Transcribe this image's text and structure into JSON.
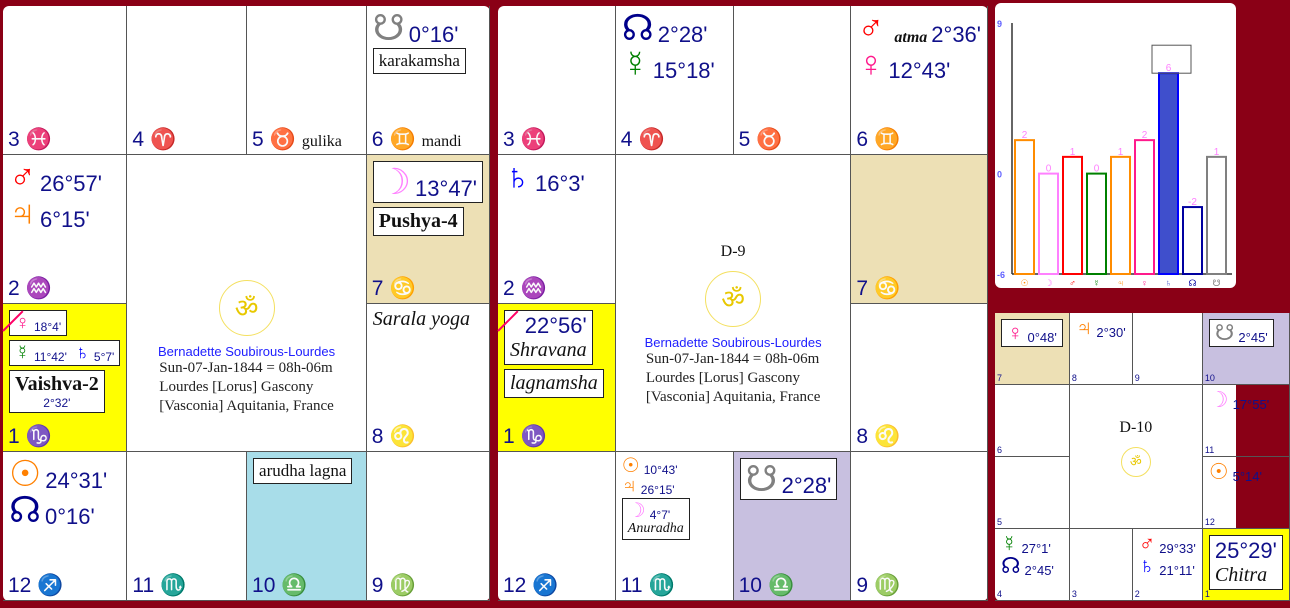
{
  "colors": {
    "background": "#8a0016",
    "yellow": "#ffff00",
    "tan": "#ede0b5",
    "lightblue": "#a8dde9",
    "lavender": "#c8c0e0",
    "degree": "#10108a"
  },
  "planets": {
    "sun": {
      "glyph": "☉",
      "color": "#ff8000"
    },
    "moon": {
      "glyph": "☽",
      "color": "#ff80ff"
    },
    "mars": {
      "glyph": "♂",
      "color": "#ff0000"
    },
    "mercury": {
      "glyph": "☿",
      "color": "#008000"
    },
    "jupiter": {
      "glyph": "♃",
      "color": "#ff8000"
    },
    "venus": {
      "glyph": "♀",
      "color": "#ff1a8c"
    },
    "saturn": {
      "glyph": "♄",
      "color": "#0000ff"
    },
    "rahu": {
      "glyph": "☊",
      "color": "#00008b"
    },
    "ketu": {
      "glyph": "☋",
      "color": "#808080"
    }
  },
  "signs": {
    "1": "♑",
    "2": "♒",
    "3": "♓",
    "4": "♈",
    "5": "♉",
    "6": "♊",
    "7": "♋",
    "8": "♌",
    "9": "♍",
    "10": "♎",
    "11": "♏",
    "12": "♐"
  },
  "sign_colors": {
    "1": "#0000ff",
    "2": "#0000ff",
    "3": "#ff8000",
    "4": "#ff0000",
    "5": "#ff1a8c",
    "6": "#008000",
    "7": "#ff80ff",
    "8": "#ff8000",
    "9": "#008000",
    "10": "#ff1a8c",
    "11": "#ff0000",
    "12": "#ff8000"
  },
  "birth": {
    "name": "Bernadette Soubirous-Lourdes",
    "line1": "Sun-07-Jan-1844 = 08h-06m",
    "line2": "Lourdes [Lorus]  Gascony",
    "line3": "[Vasconia] Aquitania, France",
    "om": "ॐ"
  },
  "charts": [
    {
      "id": "d1",
      "title": "",
      "cells": [
        {
          "house": 3
        },
        {
          "house": 4
        },
        {
          "house": 5,
          "tag": "gulika"
        },
        {
          "house": 6,
          "tag": "mandi",
          "items": [
            {
              "p": "ketu",
              "deg": "0°16'",
              "small": true
            },
            {
              "label": "karakamsha",
              "boxed": true
            }
          ]
        },
        {
          "house": 2,
          "items": [
            {
              "p": "mars",
              "deg": "26°57'"
            },
            {
              "p": "jupiter",
              "deg": "6°15'"
            }
          ]
        },
        {
          "house": 7,
          "bg": "tan",
          "items": [
            {
              "p": "moon",
              "deg": "13°47'",
              "boxed": true
            },
            {
              "label": "Pushya-4",
              "boxed": true,
              "style": "bold"
            }
          ]
        },
        {
          "house": 1,
          "bg": "yellow",
          "lagna": true,
          "items": [
            {
              "group": [
                {
                  "p": "venus",
                  "deg": "18°4'"
                }
              ],
              "boxed": true,
              "md": true
            },
            {
              "group": [
                {
                  "p": "mercury",
                  "deg": "11°42'"
                },
                {
                  "p": "saturn",
                  "deg": "5°7'"
                }
              ],
              "boxed": true,
              "md": true
            },
            {
              "label": "Vaishva-2",
              "sub": "2°32'",
              "boxed": true,
              "style": "bold"
            }
          ]
        },
        {
          "house": 8,
          "items": [
            {
              "label": "Sarala yoga",
              "style": "ital"
            }
          ]
        },
        {
          "house": 12,
          "items": [
            {
              "p": "sun",
              "deg": "24°31'"
            },
            {
              "p": "rahu",
              "deg": "0°16'"
            }
          ]
        },
        {
          "house": 11
        },
        {
          "house": 10,
          "bg": "lightblue",
          "items": [
            {
              "label": "arudha lagna",
              "boxed": true
            }
          ]
        },
        {
          "house": 9
        }
      ]
    },
    {
      "id": "d9",
      "title": "D-9",
      "cells": [
        {
          "house": 3
        },
        {
          "house": 4,
          "items": [
            {
              "p": "rahu",
              "deg": "2°28'"
            },
            {
              "p": "mercury",
              "deg": "15°18'"
            }
          ]
        },
        {
          "house": 5
        },
        {
          "house": 6,
          "items": [
            {
              "p": "mars",
              "deg": "2°36'",
              "note": "atma"
            },
            {
              "p": "venus",
              "deg": "12°43'"
            }
          ]
        },
        {
          "house": 2,
          "items": [
            {
              "p": "saturn",
              "deg": "16°3'"
            }
          ]
        },
        {
          "house": 7,
          "bg": "tan"
        },
        {
          "house": 1,
          "bg": "yellow",
          "lagna": true,
          "items": [
            {
              "label": "22°56'",
              "sub": "Shravana",
              "boxed": true,
              "style": "deg"
            },
            {
              "label": "lagnamsha",
              "boxed": true,
              "style": "ital"
            }
          ]
        },
        {
          "house": 8
        },
        {
          "house": 12
        },
        {
          "house": 11,
          "items": [
            {
              "group": [
                {
                  "p": "sun",
                  "deg": "10°43'"
                }
              ],
              "md": true
            },
            {
              "group": [
                {
                  "p": "jupiter",
                  "deg": "26°15'"
                }
              ],
              "md": true
            },
            {
              "group": [
                {
                  "p": "moon",
                  "deg": "4°7'"
                }
              ],
              "md": true,
              "boxed": true,
              "sub": "Anuradha"
            }
          ]
        },
        {
          "house": 10,
          "bg": "lavender",
          "items": [
            {
              "p": "ketu",
              "deg": "2°28'",
              "boxed": true
            }
          ]
        },
        {
          "house": 9
        }
      ]
    },
    {
      "id": "d10",
      "title": "D-10",
      "cells": [
        {
          "house": 7,
          "bg": "tan",
          "items": [
            {
              "p": "venus",
              "deg": "0°48'",
              "boxed": true
            }
          ]
        },
        {
          "house": 8,
          "items": [
            {
              "p": "jupiter",
              "deg": "2°30'"
            }
          ]
        },
        {
          "house": 9
        },
        {
          "house": 10,
          "bg": "lavender",
          "items": [
            {
              "p": "ketu",
              "deg": "2°45'",
              "boxed": true
            }
          ]
        },
        {
          "house": 6
        },
        {
          "house": 11,
          "items": [
            {
              "p": "moon",
              "deg": "17°55'"
            }
          ]
        },
        {
          "house": 5
        },
        {
          "house": 12,
          "items": [
            {
              "p": "sun",
              "deg": "5°14'"
            }
          ]
        },
        {
          "house": 4,
          "items": [
            {
              "p": "mercury",
              "deg": "27°1'"
            },
            {
              "p": "rahu",
              "deg": "2°45'"
            }
          ]
        },
        {
          "house": 3
        },
        {
          "house": 2,
          "items": [
            {
              "p": "mars",
              "deg": "29°33'"
            },
            {
              "p": "saturn",
              "deg": "21°11'"
            }
          ]
        },
        {
          "house": 1,
          "bg": "yellow",
          "items": [
            {
              "label": "25°29'",
              "sub": "Chitra",
              "boxed": true,
              "style": "deg"
            }
          ]
        }
      ]
    }
  ],
  "chart_data": {
    "type": "bar",
    "categories": [
      "☉",
      "☽",
      "♂",
      "☿",
      "♃",
      "♀",
      "♄",
      "☊",
      "☋"
    ],
    "values": [
      2,
      0,
      1,
      0,
      1,
      2,
      6,
      -2,
      1
    ],
    "colors": [
      "#ff8c00",
      "#ff80ff",
      "#ff0000",
      "#008000",
      "#ff8c00",
      "#ff1a8c",
      "#3f4fcc",
      "#0000a0",
      "#808080"
    ],
    "highlight_index": 6,
    "ylim": [
      -6,
      9
    ],
    "yticks": [
      "9",
      "0",
      "-6"
    ],
    "xlabel": "",
    "ylabel": ""
  }
}
